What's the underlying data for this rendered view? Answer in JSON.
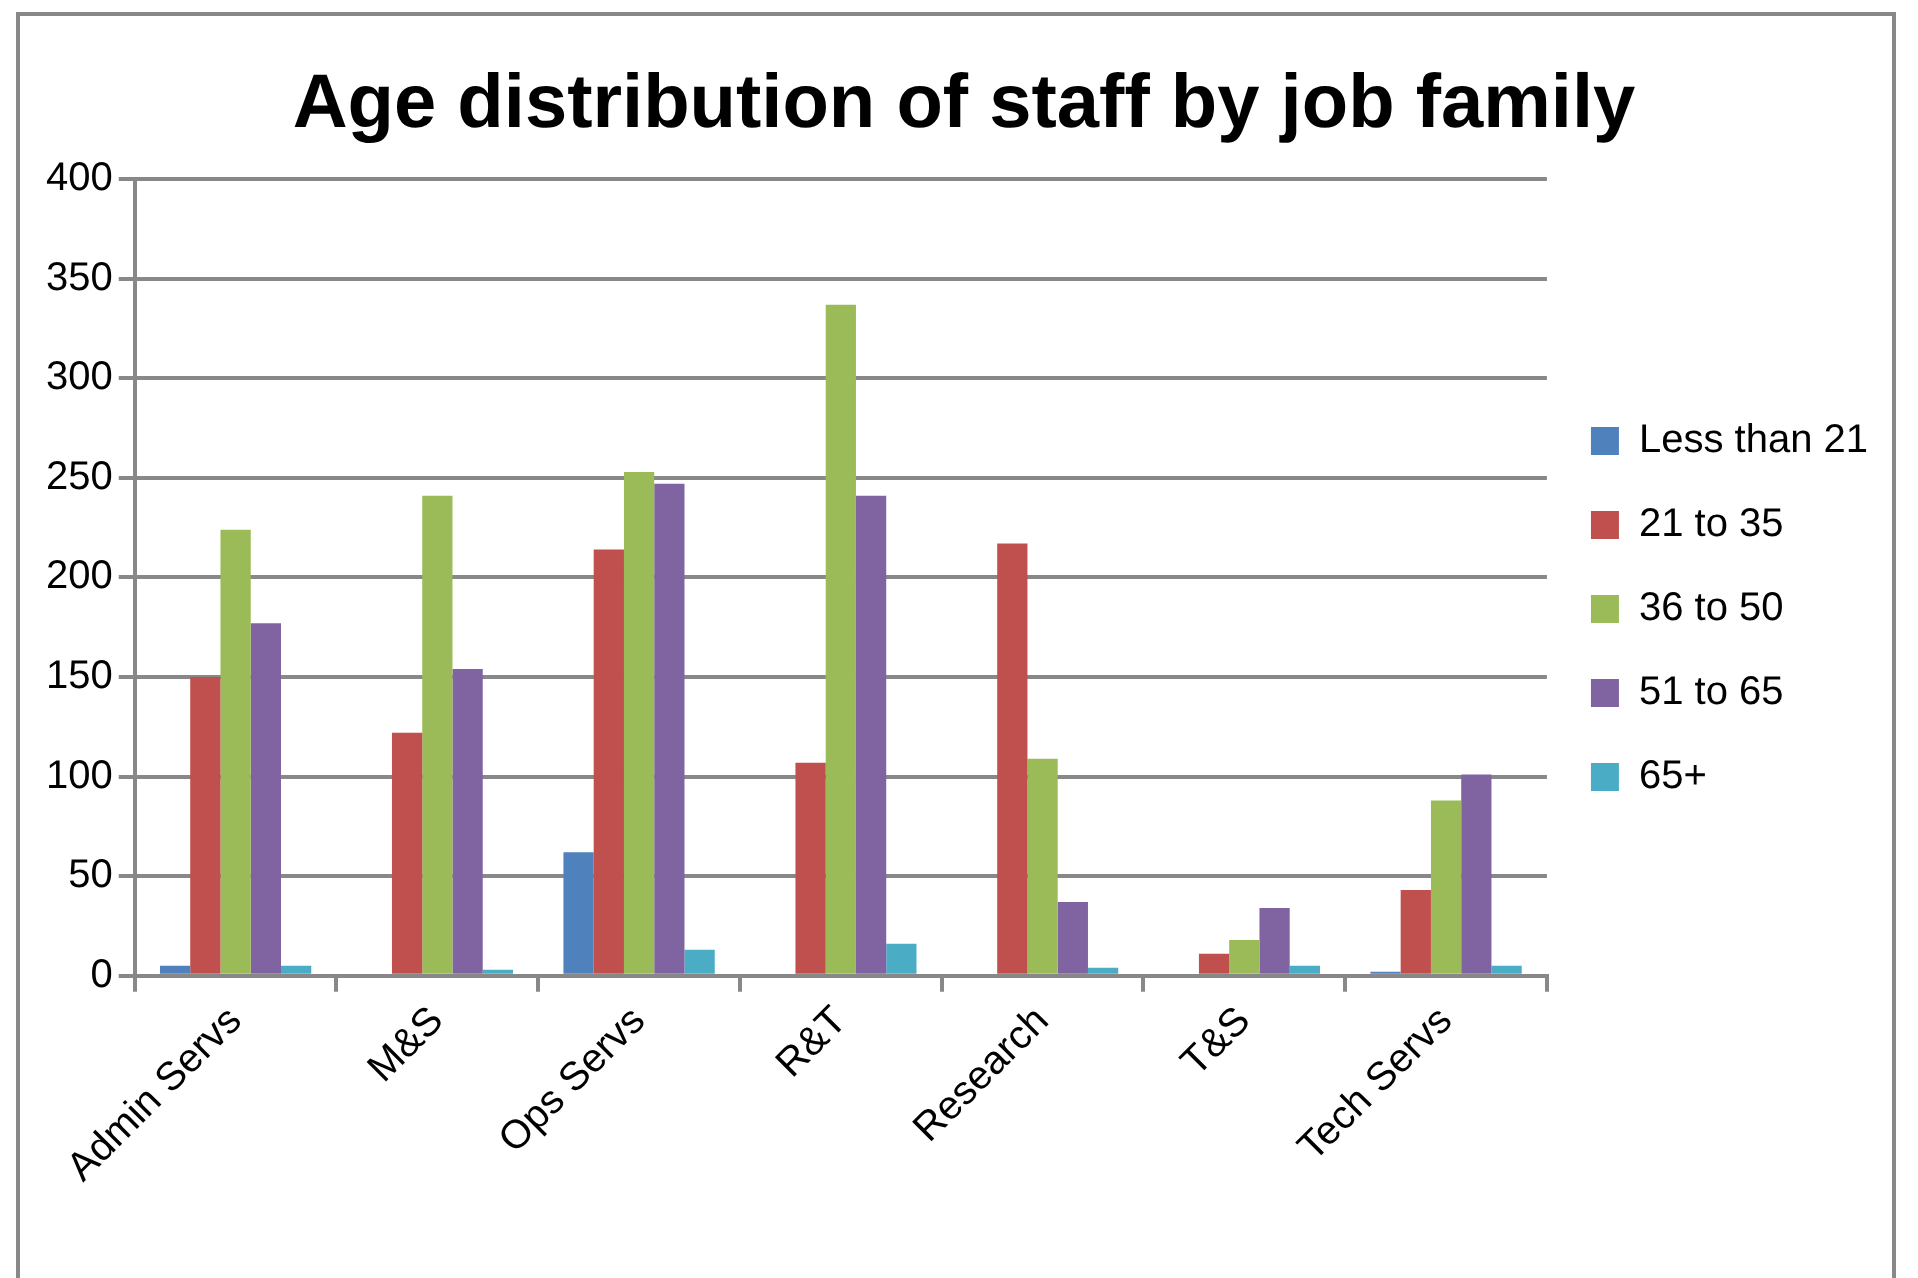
{
  "chart_data": {
    "type": "bar",
    "title": "Age distribution of staff by job family",
    "categories": [
      "Admin Servs",
      "M&S",
      "Ops Servs",
      "R&T",
      "Research",
      "T&S",
      "Tech Servs"
    ],
    "series": [
      {
        "name": "Less than 21",
        "color": "#4f81bd",
        "values": [
          5,
          0,
          62,
          0,
          0,
          0,
          2
        ]
      },
      {
        "name": "21 to 35",
        "color": "#c0504d",
        "values": [
          150,
          122,
          214,
          107,
          217,
          11,
          43
        ]
      },
      {
        "name": "36 to 50",
        "color": "#9bbb59",
        "values": [
          224,
          241,
          253,
          337,
          109,
          18,
          88
        ]
      },
      {
        "name": "51 to 65",
        "color": "#8064a2",
        "values": [
          177,
          154,
          247,
          241,
          37,
          34,
          101
        ]
      },
      {
        "name": "65+",
        "color": "#4bacc6",
        "values": [
          5,
          3,
          13,
          16,
          4,
          5,
          5
        ]
      }
    ],
    "ylim": [
      0,
      400
    ],
    "yticks": [
      0,
      50,
      100,
      150,
      200,
      250,
      300,
      350,
      400
    ],
    "grid": "y",
    "legend": "right"
  }
}
